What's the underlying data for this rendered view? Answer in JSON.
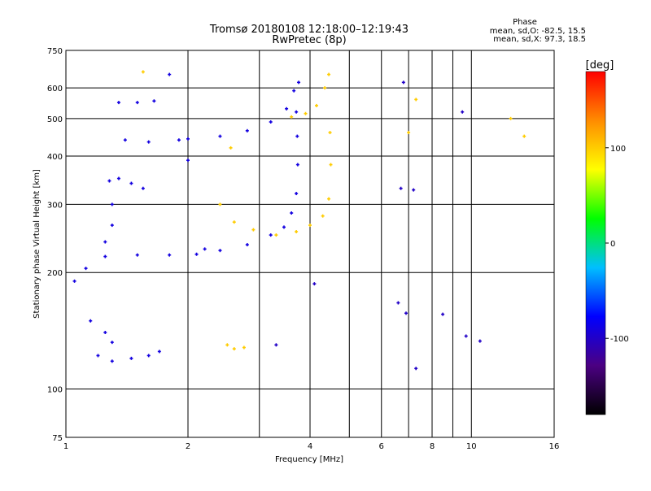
{
  "header": {
    "title_line1": "Tromsø 20180108 12:18:00–12:19:43",
    "title_line2": "RwPretec (8p)",
    "phase_block": {
      "heading": "Phase",
      "line1": "mean, sd,O: -82.5, 15.5",
      "line2": "mean, sd,X:  97.3, 18.5"
    }
  },
  "colorbar": {
    "label": "[deg]",
    "ticks": [
      "100",
      "0",
      "-100"
    ],
    "tick_values": [
      100,
      0,
      -100
    ],
    "range": [
      -180,
      180
    ],
    "colors": [
      "#000000",
      "#4b0082",
      "#0000ff",
      "#00bfff",
      "#00ff00",
      "#ffff00",
      "#ff8c00",
      "#ff0000"
    ]
  },
  "chart_data": {
    "type": "scatter",
    "title": "Tromsø 20180108 12:18:00–12:19:43",
    "subtitle": "RwPretec (8p)",
    "xlabel": "Frequency [MHz]",
    "ylabel": "Stationary phase Virtual Height [km]",
    "x_scale": "log",
    "y_scale": "log",
    "xlim": [
      1,
      16
    ],
    "ylim": [
      75,
      750
    ],
    "x_ticks": [
      1,
      2,
      4,
      6,
      8,
      10,
      16
    ],
    "x_ticks_minor": [
      3,
      5,
      7,
      9
    ],
    "y_ticks": [
      75,
      100,
      200,
      300,
      400,
      500,
      600,
      750
    ],
    "grid": true,
    "color_variable": "Phase [deg]",
    "traces": [
      {
        "mode": "O",
        "phase": -90,
        "points": [
          [
            1.2,
            122
          ],
          [
            1.3,
            118
          ],
          [
            1.45,
            120
          ],
          [
            1.6,
            122
          ],
          [
            1.7,
            125
          ],
          [
            1.15,
            150
          ],
          [
            1.25,
            140
          ],
          [
            1.3,
            132
          ],
          [
            1.05,
            190
          ],
          [
            1.12,
            205
          ],
          [
            1.25,
            220
          ],
          [
            1.5,
            222
          ],
          [
            1.8,
            222
          ],
          [
            2.1,
            223
          ],
          [
            2.4,
            228
          ],
          [
            2.8,
            236
          ],
          [
            3.2,
            250
          ],
          [
            3.45,
            262
          ],
          [
            3.6,
            285
          ],
          [
            3.7,
            320
          ],
          [
            3.73,
            380
          ],
          [
            3.72,
            450
          ],
          [
            3.7,
            520
          ],
          [
            3.75,
            620
          ],
          [
            1.25,
            240
          ],
          [
            1.3,
            265
          ],
          [
            1.3,
            300
          ],
          [
            1.28,
            345
          ],
          [
            1.35,
            350
          ],
          [
            1.45,
            340
          ],
          [
            1.55,
            330
          ],
          [
            1.4,
            440
          ],
          [
            1.6,
            435
          ],
          [
            2.0,
            443
          ],
          [
            2.4,
            450
          ],
          [
            2.8,
            465
          ],
          [
            3.2,
            490
          ],
          [
            3.5,
            530
          ],
          [
            3.65,
            590
          ],
          [
            1.35,
            550
          ],
          [
            1.5,
            550
          ],
          [
            1.65,
            555
          ],
          [
            1.8,
            650
          ],
          [
            1.9,
            440
          ],
          [
            2.0,
            390
          ],
          [
            2.2,
            230
          ]
        ]
      },
      {
        "mode": "X",
        "phase": 100,
        "points": [
          [
            2.4,
            300
          ],
          [
            2.6,
            270
          ],
          [
            2.9,
            258
          ],
          [
            3.3,
            250
          ],
          [
            3.7,
            255
          ],
          [
            4.0,
            265
          ],
          [
            4.3,
            280
          ],
          [
            4.45,
            310
          ],
          [
            4.5,
            380
          ],
          [
            4.48,
            460
          ],
          [
            3.6,
            505
          ],
          [
            3.9,
            515
          ],
          [
            4.15,
            540
          ],
          [
            4.35,
            600
          ],
          [
            4.45,
            650
          ],
          [
            2.5,
            130
          ],
          [
            2.6,
            127
          ],
          [
            2.75,
            128
          ],
          [
            1.55,
            660
          ],
          [
            2.55,
            420
          ],
          [
            7.0,
            460
          ],
          [
            7.3,
            560
          ],
          [
            12.5,
            500
          ],
          [
            13.5,
            450
          ]
        ]
      },
      {
        "mode": "noise",
        "phase": -100,
        "points": [
          [
            6.8,
            620
          ],
          [
            9.5,
            520
          ],
          [
            6.6,
            167
          ],
          [
            6.9,
            157
          ],
          [
            9.7,
            137
          ],
          [
            8.5,
            156
          ],
          [
            6.7,
            330
          ],
          [
            7.2,
            327
          ],
          [
            10.5,
            133
          ],
          [
            4.1,
            187
          ],
          [
            3.3,
            130
          ],
          [
            7.3,
            113
          ]
        ]
      }
    ]
  }
}
